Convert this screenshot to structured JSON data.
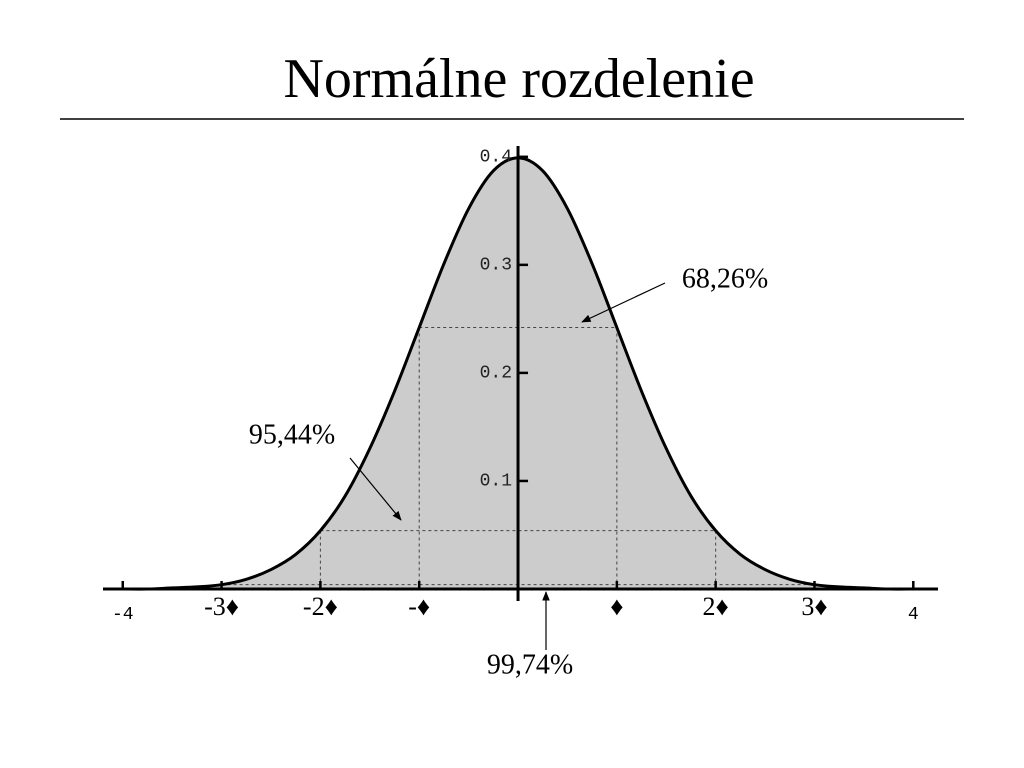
{
  "chart_data": {
    "type": "area",
    "title": "Normálne rozdelenie",
    "x": [
      -4,
      -3.75,
      -3.5,
      -3.25,
      -3,
      -2.75,
      -2.5,
      -2.25,
      -2,
      -1.75,
      -1.5,
      -1.25,
      -1,
      -0.75,
      -0.5,
      -0.25,
      0,
      0.25,
      0.5,
      0.75,
      1,
      1.25,
      1.5,
      1.75,
      2,
      2.25,
      2.5,
      2.75,
      3,
      3.25,
      3.5,
      3.75,
      4
    ],
    "values": [
      0.0,
      0.0,
      0.001,
      0.002,
      0.004,
      0.009,
      0.018,
      0.032,
      0.054,
      0.086,
      0.13,
      0.183,
      0.242,
      0.301,
      0.352,
      0.387,
      0.399,
      0.387,
      0.352,
      0.301,
      0.242,
      0.183,
      0.13,
      0.086,
      0.054,
      0.032,
      0.018,
      0.009,
      0.004,
      0.002,
      0.001,
      0.0,
      0.0
    ],
    "color": "#cccccc",
    "xlim": [
      -4.2,
      4.25
    ],
    "ylim": [
      0,
      0.41
    ],
    "xticks": [
      -4,
      {
        "value": -3,
        "label": "-3♦"
      },
      {
        "value": -2,
        "label": "-2♦"
      },
      {
        "value": -1,
        "label": "-♦"
      },
      {
        "value": 1,
        "label": "♦"
      },
      {
        "value": 2,
        "label": "2♦"
      },
      {
        "value": 3,
        "label": "3♦"
      },
      4
    ],
    "yticks": [
      0.1,
      0.2,
      0.3,
      0.4
    ],
    "intervals": [
      {
        "from": -1,
        "to": 1,
        "y": 0.242,
        "label": "68,26%"
      },
      {
        "from": -2,
        "to": 2,
        "y": 0.054,
        "label": "95,44%"
      },
      {
        "from": -3,
        "to": 3,
        "y": 0.004,
        "label": "99,74%"
      }
    ]
  }
}
